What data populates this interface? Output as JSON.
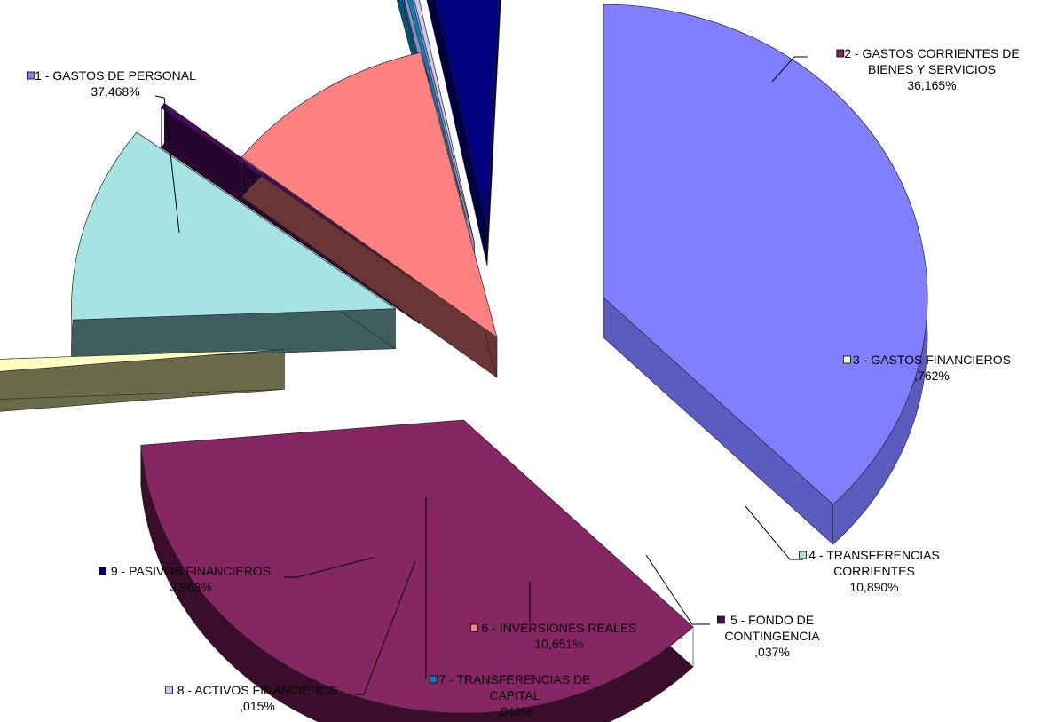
{
  "chart_data": {
    "type": "pie",
    "style": "3d-exploded",
    "categories": [
      "1 - GASTOS DE PERSONAL",
      "2 - GASTOS CORRIENTES DE BIENES Y SERVICIOS",
      "3 - GASTOS FINANCIEROS",
      "4 - TRANSFERENCIAS CORRIENTES",
      "5 - FONDO DE CONTINGENCIA",
      "6 - INVERSIONES REALES",
      "7 - TRANSFERENCIAS DE CAPITAL",
      "8 - ACTIVOS FINANCIEROS",
      "9 - PASIVOS FINANCIEROS"
    ],
    "values": [
      37.468,
      36.165,
      0.762,
      10.89,
      0.037,
      10.651,
      0.049,
      0.015,
      3.963
    ],
    "value_labels": [
      "37,468%",
      "36,165%",
      ",762%",
      "10,890%",
      ",037%",
      "10,651%",
      ",049%",
      ",015%",
      "3,963%"
    ],
    "label_lines": [
      [
        "1 - GASTOS DE PERSONAL"
      ],
      [
        "2 - GASTOS CORRIENTES DE",
        "BIENES Y SERVICIOS"
      ],
      [
        "3 - GASTOS FINANCIEROS"
      ],
      [
        "4 - TRANSFERENCIAS",
        "CORRIENTES"
      ],
      [
        "5 - FONDO DE",
        "CONTINGENCIA"
      ],
      [
        "6 - INVERSIONES REALES"
      ],
      [
        "7 - TRANSFERENCIAS DE",
        "CAPITAL"
      ],
      [
        "8 - ACTIVOS FINANCIEROS"
      ],
      [
        "9 - PASIVOS FINANCIEROS"
      ]
    ],
    "colors": [
      "#8080ff",
      "#862663",
      "#ffffc0",
      "#a6e3e3",
      "#4a0a5e",
      "#ff8080",
      "#0a7fc0",
      "#c8c8f0",
      "#000080"
    ],
    "side_colors": [
      "#5c5cc0",
      "#3a0d2a",
      "#6b6b4a",
      "#3f5f5f",
      "#26062f",
      "#6b3535",
      "#06507a",
      "#8e8eb8",
      "#000040"
    ],
    "title": "",
    "legend": "none"
  }
}
